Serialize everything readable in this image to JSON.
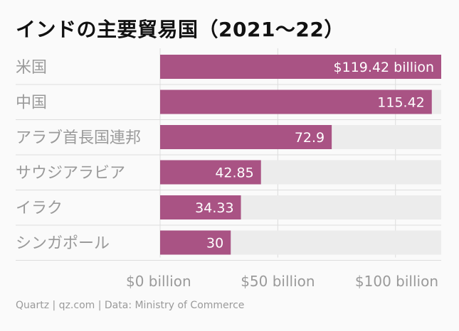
{
  "chart_data": {
    "type": "bar",
    "orientation": "horizontal",
    "title": "インドの主要貿易国（2021〜22）",
    "categories": [
      "米国",
      "中国",
      "アラブ首長国連邦",
      "サウジアラビア",
      "イラク",
      "シンガポール"
    ],
    "values": [
      119.42,
      115.42,
      72.9,
      42.85,
      34.33,
      30
    ],
    "data_labels": [
      "$119.42 billion",
      "115.42",
      "72.9",
      "42.85",
      "34.33",
      "30"
    ],
    "x_ticks": [
      0,
      50,
      100
    ],
    "x_tick_labels": [
      "$0 billion",
      "$50 billion",
      "$100 billion"
    ],
    "xlim": [
      0,
      119.42
    ],
    "grid": true,
    "xlabel": "",
    "ylabel": ""
  },
  "colors": {
    "bar": "#a95384",
    "track": "#ececec",
    "background": "#fafafa",
    "category_text": "#9a9a9a",
    "label_text": "#ffffff",
    "gridline": "#dddddd"
  },
  "footer": {
    "source": "Quartz | qz.com | Data: Ministry of Commerce"
  }
}
